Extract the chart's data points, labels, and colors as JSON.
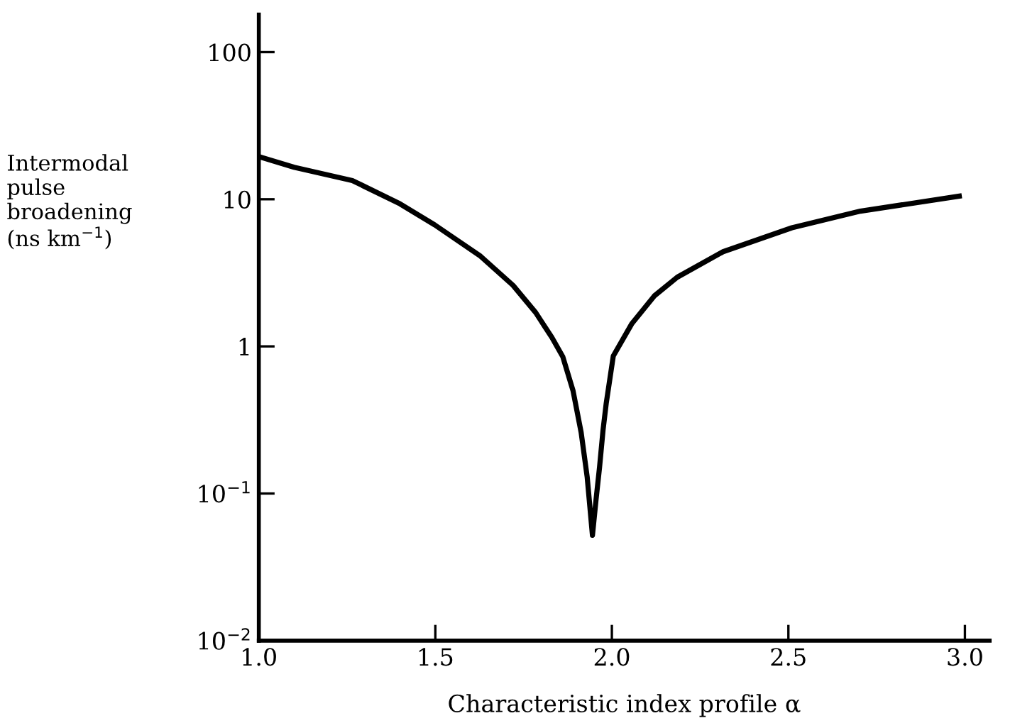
{
  "chart_data": {
    "type": "line",
    "xlabel": "Characteristic index profile α",
    "ylabel": "Intermodal\npulse\nbroadening\n(ns km$^{−1}$)",
    "x": [
      1.0,
      1.1,
      1.265,
      1.4,
      1.498,
      1.628,
      1.72,
      1.784,
      1.83,
      1.861,
      1.89,
      1.913,
      1.93,
      1.945,
      1.955,
      1.965,
      1.975,
      1.984,
      2.004,
      2.056,
      2.12,
      2.185,
      2.315,
      2.51,
      2.704,
      2.984
    ],
    "series": [
      {
        "color": "#000000",
        "values": [
          19.5,
          16.5,
          13.4,
          9.3,
          6.7,
          4.1,
          2.6,
          1.7,
          1.15,
          0.85,
          0.5,
          0.26,
          0.13,
          0.052,
          0.09,
          0.15,
          0.27,
          0.41,
          0.86,
          1.42,
          2.2,
          2.95,
          4.4,
          6.4,
          8.3,
          10.5
        ]
      }
    ],
    "xlim": [
      1.0,
      3.07
    ],
    "ylim": [
      0.01,
      180
    ],
    "log": "y",
    "xticks": [
      {
        "value": 1.0,
        "label": "1.0"
      },
      {
        "value": 1.5,
        "label": "1.5"
      },
      {
        "value": 2.0,
        "label": "2.0"
      },
      {
        "value": 2.5,
        "label": "2.5"
      },
      {
        "value": 3.0,
        "label": "3.0"
      }
    ],
    "yticks": [
      {
        "value": 0.01,
        "label": "10$^{−2}$"
      },
      {
        "value": 0.1,
        "label": "10$^{−1}$"
      },
      1,
      10,
      100
    ],
    "grid": false,
    "marker": "none",
    "line_style": "solid"
  }
}
